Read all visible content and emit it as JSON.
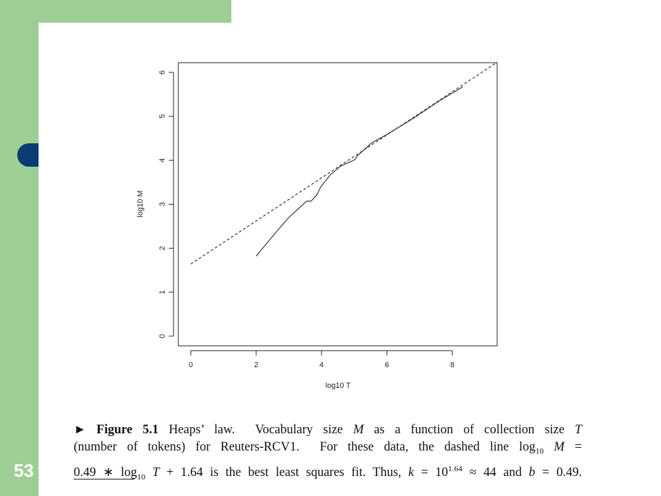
{
  "slide_number": "53",
  "chart_data": {
    "type": "line",
    "x_label": "log10 T",
    "y_label": "log10 M",
    "xlim": [
      -0.38,
      9.37
    ],
    "ylim": [
      -0.22,
      6.22
    ],
    "xticks": [
      0,
      2,
      4,
      6,
      8
    ],
    "yticks": [
      0,
      1,
      2,
      3,
      4,
      5,
      6
    ],
    "series": [
      {
        "color": "#333333",
        "linestyle": "solid",
        "x": [
          2,
          2.5,
          3,
          3.54,
          3.68,
          3.85,
          3.98,
          4.27,
          4.59,
          5.01,
          5.12,
          5.54,
          5.96,
          6.8,
          7.64,
          8.32
        ],
        "values": [
          1.82,
          2.27,
          2.7,
          3.07,
          3.07,
          3.21,
          3.4,
          3.67,
          3.87,
          4.01,
          4.12,
          4.4,
          4.57,
          4.95,
          5.37,
          5.67
        ]
      },
      {
        "color": "#333333",
        "linestyle": "dashed",
        "x": [
          0,
          9.37
        ],
        "values": [
          1.64,
          6.23
        ]
      }
    ]
  },
  "caption": {
    "line1": [
      "►",
      "Figure 5.1",
      "Heaps’ law.  Vocabulary size",
      "M",
      "as a function of collection size",
      "T"
    ],
    "line2": [
      "(number of tokens) for Reuters-RCV1.  For these data, the dashed line log",
      "10",
      "M",
      "="
    ],
    "line3": [
      "0.49 ∗ log",
      "10",
      "T",
      "+ 1.64 is the best least squares fit. Thus,",
      "k",
      "= 10",
      "1.64",
      "≈ 44 and",
      "b",
      "= 0.49."
    ]
  }
}
